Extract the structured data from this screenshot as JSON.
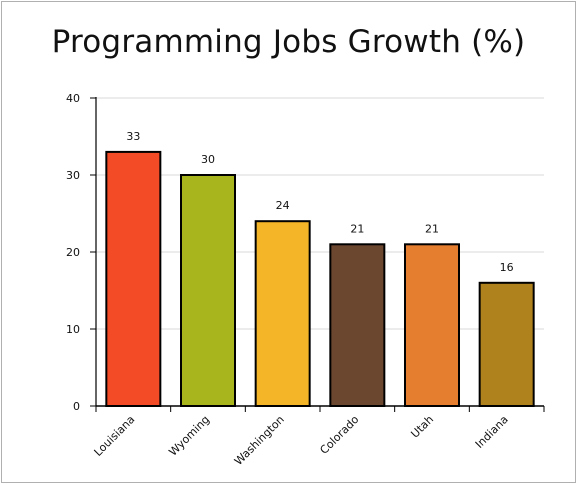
{
  "chart_data": {
    "type": "bar",
    "title": "Programming Jobs Growth (%)",
    "xlabel": "",
    "ylabel": "",
    "categories": [
      "Louisiana",
      "Wyoming",
      "Washington",
      "Colorado",
      "Utah",
      "Indiana"
    ],
    "values": [
      33,
      30,
      24,
      21,
      21,
      16
    ],
    "colors": [
      "#f44b27",
      "#a9b51d",
      "#f4b529",
      "#6b4730",
      "#e67e30",
      "#b0821e"
    ],
    "ylim": [
      0,
      40
    ],
    "yticks": [
      0,
      10,
      20,
      30,
      40
    ],
    "grid": true,
    "legend": "none"
  }
}
